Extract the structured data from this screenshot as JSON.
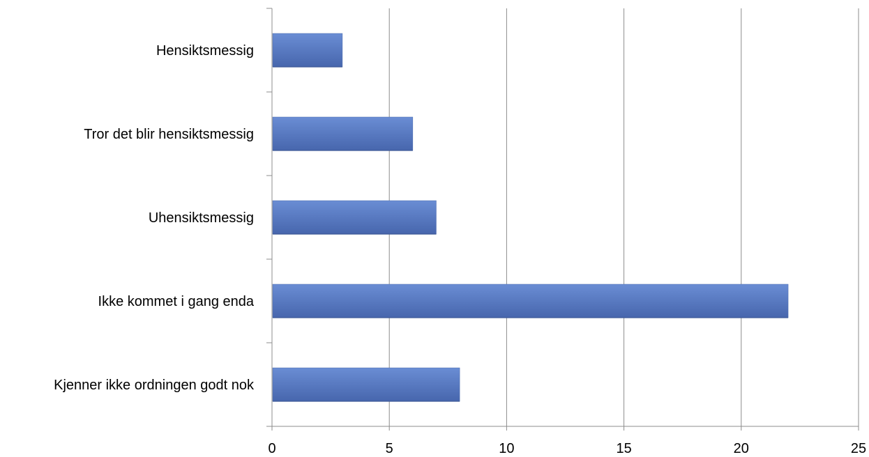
{
  "chart_data": {
    "type": "bar",
    "orientation": "horizontal",
    "categories": [
      "Hensiktsmessig",
      "Tror det blir hensiktsmessig",
      "Uhensiktsmessig",
      "Ikke kommet i gang enda",
      "Kjenner ikke ordningen godt nok"
    ],
    "values": [
      3,
      6,
      7,
      22,
      8
    ],
    "xlim": [
      0,
      25
    ],
    "xticks": [
      "0",
      "5",
      "10",
      "15",
      "20",
      "25"
    ],
    "grid": "vertical",
    "legend": "none",
    "bar_color": "#5B7FC8",
    "bar_color_dark": "#4A6AAE"
  }
}
